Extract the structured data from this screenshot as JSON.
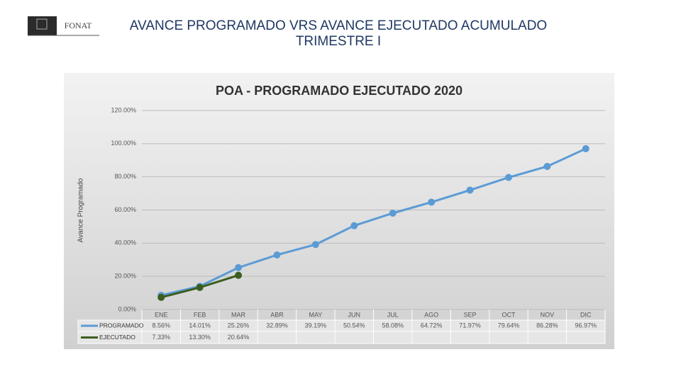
{
  "header": {
    "logo_text": "FONAT",
    "title": [
      "AVANCE PROGRAMADO VRS AVANCE EJECUTADO ACUMULADO",
      "TRIMESTRE I"
    ]
  },
  "chart_data": {
    "type": "line",
    "title": "POA - PROGRAMADO EJECUTADO 2020",
    "y_label": "Avance Programado",
    "categories": [
      "ENE",
      "FEB",
      "MAR",
      "ABR",
      "MAY",
      "JUN",
      "JUL",
      "AGO",
      "SEP",
      "OCT",
      "NOV",
      "DIC"
    ],
    "series": [
      {
        "name": "PROGRAMADO",
        "color": "#5b9bd5",
        "values": [
          8.56,
          14.01,
          25.26,
          32.89,
          39.19,
          50.54,
          58.08,
          64.72,
          71.97,
          79.64,
          86.28,
          96.97
        ],
        "value_labels": [
          "8.56%",
          "14.01%",
          "25.26%",
          "32.89%",
          "39.19%",
          "50.54%",
          "58.08%",
          "64.72%",
          "71.97%",
          "79.64%",
          "86.28%",
          "96.97%"
        ]
      },
      {
        "name": "EJECUTADO",
        "color": "#3b5e1f",
        "values": [
          7.33,
          13.3,
          20.64,
          null,
          null,
          null,
          null,
          null,
          null,
          null,
          null,
          null
        ],
        "value_labels": [
          "7.33%",
          "13.30%",
          "20.64%",
          null,
          null,
          null,
          null,
          null,
          null,
          null,
          null,
          null
        ]
      }
    ],
    "ylim": [
      0,
      120
    ],
    "yticks": [
      {
        "value": 0,
        "label": "0.00%"
      },
      {
        "value": 20,
        "label": "20.00%"
      },
      {
        "value": 40,
        "label": "40.00%"
      },
      {
        "value": 60,
        "label": "60.00%"
      },
      {
        "value": 80,
        "label": "80.00%"
      },
      {
        "value": 100,
        "label": "100.00%"
      },
      {
        "value": 120,
        "label": "120.00%"
      }
    ],
    "grid": true
  }
}
